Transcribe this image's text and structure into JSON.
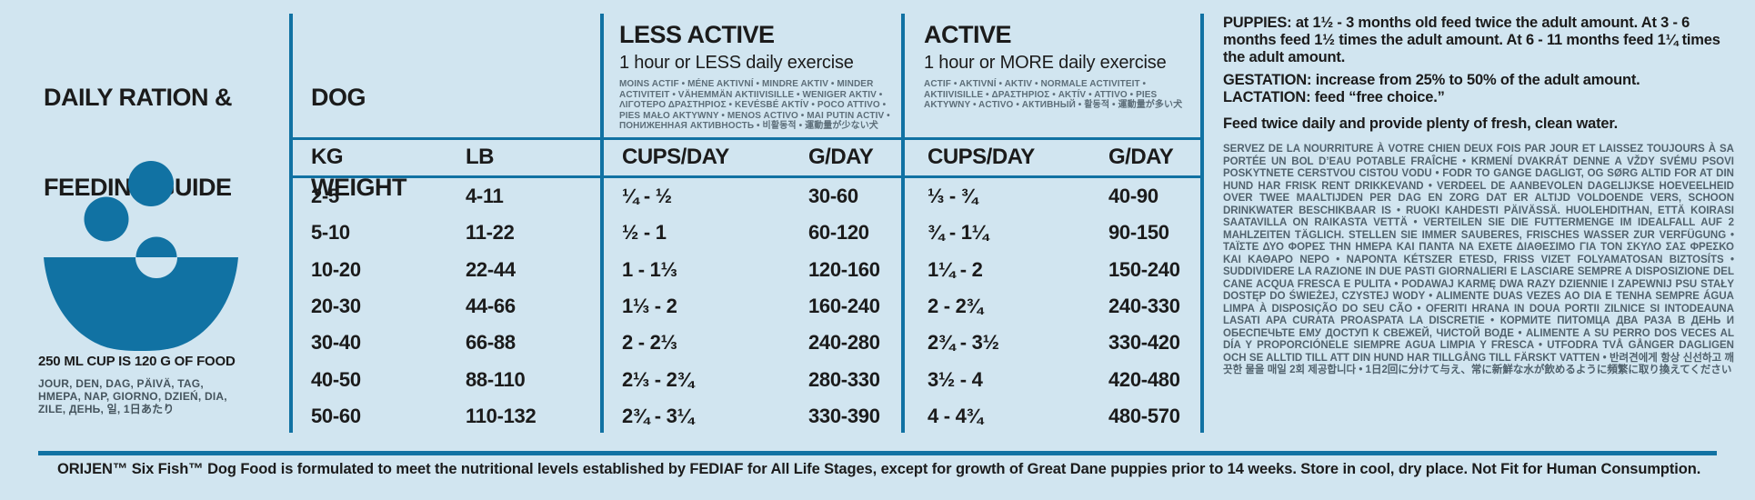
{
  "theme": {
    "background": "#d1e5f0",
    "accent_blue": "#1172a3",
    "text_black": "#1b1b1b",
    "text_gray": "#51626d"
  },
  "left_panel": {
    "title_line1": "DAILY RATION &",
    "title_line2": "FEEDING GUIDE",
    "bowl_icon": "bowl-with-kibble-icon",
    "cup_note": "250 ML CUP IS 120 G OF FOOD",
    "day_translations": [
      "JOUR, DEN, DAG, PÄIVÄ, TAG,",
      "HMEPA, NAP, GIORNO, DZIEŃ, DIA,",
      "ZILE, ДЕНЬ, 일, 1日あたり"
    ]
  },
  "table": {
    "weight_header_line1": "DOG",
    "weight_header_line2": "WEIGHT",
    "less_active": {
      "title": "LESS ACTIVE",
      "subtitle": "1 hour or LESS daily exercise",
      "translations": "MOINS ACTIF • MÉNE AKTIVNÍ • MINDRE AKTIV • MINDER ACTIVITEIT • VÄHEMMÄN AKTIIVISILLE • WENIGER AKTIV • ΛΙΓΟΤΕΡΟ ΔΡΑΣΤΗΡΙΟΣ • KEVÉSBÉ AKTÍV • POCO ATTIVO • PIES MAŁO AKTYWNY • MENOS ACTIVO • MAI PUTIN ACTIV • ПОНИЖЕННАЯ АКТИВНОСТЬ • 비활동적 • 運動量が少ない犬"
    },
    "active": {
      "title": "ACTIVE",
      "subtitle": "1 hour or MORE daily exercise",
      "translations": "ACTIF • AKTIVNÍ • AKTIV • NORMALE ACTIVITEIT • AKTIIVISILLE • ΔΡΑΣΤΗΡΙΟΣ • AKTÍV • ATTIVO • PIES AKTYWNY • ACTIVO • АКТИВНЫЙ • 활동적 • 運動量が多い犬"
    },
    "columns": {
      "kg": "KG",
      "lb": "LB",
      "less_cups": "CUPS/DAY",
      "less_g": "G/DAY",
      "active_cups": "CUPS/DAY",
      "active_g": "G/DAY"
    },
    "rows": [
      {
        "kg": "2-5",
        "lb": "4-11",
        "la_cups": "¼ - ½",
        "la_g": "30-60",
        "a_cups": "⅓ - ¾",
        "a_g": "40-90"
      },
      {
        "kg": "5-10",
        "lb": "11-22",
        "la_cups": "½ - 1",
        "la_g": "60-120",
        "a_cups": "¾ - 1¼",
        "a_g": "90-150"
      },
      {
        "kg": "10-20",
        "lb": "22-44",
        "la_cups": "1 - 1⅓",
        "la_g": "120-160",
        "a_cups": "1¼ - 2",
        "a_g": "150-240"
      },
      {
        "kg": "20-30",
        "lb": "44-66",
        "la_cups": "1⅓ - 2",
        "la_g": "160-240",
        "a_cups": "2 - 2¾",
        "a_g": "240-330"
      },
      {
        "kg": "30-40",
        "lb": "66-88",
        "la_cups": "2 - 2⅓",
        "la_g": "240-280",
        "a_cups": "2¾ - 3½",
        "a_g": "330-420"
      },
      {
        "kg": "40-50",
        "lb": "88-110",
        "la_cups": "2⅓ - 2¾",
        "la_g": "280-330",
        "a_cups": "3½ - 4",
        "a_g": "420-480"
      },
      {
        "kg": "50-60",
        "lb": "110-132",
        "la_cups": "2¾ - 3¼",
        "la_g": "330-390",
        "a_cups": "4 - 4¾",
        "a_g": "480-570"
      }
    ]
  },
  "right_panel": {
    "puppies_label": "PUPPIES",
    "puppies_text": ": at 1½ - 3 months old feed twice the adult amount. At 3 - 6 months feed 1½ times the adult amount. At 6 - 11 months feed 1¼ times the adult amount.",
    "gestation_label": "GESTATION",
    "gestation_text": ": increase from 25% to 50% of the adult amount.",
    "lactation_label": "LACTATION",
    "lactation_text": ": feed “free choice.”",
    "water_note": "Feed twice daily and provide plenty of fresh, clean water.",
    "translations_paragraph": "SERVEZ DE LA NOURRITURE À VOTRE CHIEN DEUX FOIS PAR JOUR ET LAISSEZ TOUJOURS À SA PORTÉE UN BOL D’EAU POTABLE FRAÎCHE • KRMENÍ DVAKRÁT DENNE A VŽDY SVÉMU PSOVI POSKYTNETE CERSTVOU CISTOU VODU • FODR TO GANGE DAGLIGT, OG SØRG ALTID FOR AT DIN HUND HAR FRISK RENT DRIKKEVAND • VERDEEL DE AANBEVOLEN DAGELIJKSE HOEVEELHEID OVER TWEE MAALTIJDEN PER DAG EN ZORG DAT ER ALTIJD VOLDOENDE VERS, SCHOON DRINKWATER BESCHIKBAAR IS • RUOKI KAHDESTI PÄIVÄSSÄ. HUOLEHDITHAN, ETTÄ KOIRASI SAATAVILLA ON RAIKASTA VETTÄ • VERTEILEN SIE DIE FUTTERMENGE IM IDEALFALL AUF 2 MAHLZEITEN TÄGLICH. STELLEN SIE IMMER SAUBERES, FRISCHES WASSER ZUR VERFÜGUNG • ΤΑΪΣΤΕ ΔΥΟ ΦΟΡΕΣ ΤΗΝ ΗΜΕΡΑ ΚΑΙ ΠΑΝΤΑ ΝΑ ΕΧΕΤΕ ΔΙΑΘΕΣΙΜΟ ΓΙΑ ΤΟΝ ΣΚΥΛΟ ΣΑΣ ΦΡΕΣΚΟ ΚΑΙ ΚΑΘΑΡΟ ΝΕΡΟ • NAPONTA KÉTSZER ETESD, FRISS VIZET FOLYAMATOSAN BIZTOSÍTS • SUDDIVIDERE LA RAZIONE IN DUE PASTI GIORNALIERI E LASCIARE SEMPRE A DISPOSIZIONE DEL CANE ACQUA FRESCA E PULITA • PODAWAJ KARMĘ DWA RAZY DZIENNIE I ZAPEWNIJ PSU STAŁY DOSTĘP DO ŚWIEŻEJ, CZYSTEJ WODY • ALIMENTE DUAS VEZES AO DIA E TENHA SEMPRE ÁGUA LIMPA À DISPOSIÇÃO DO SEU CÃO • OFERITI HRANA IN DOUA PORTII ZILNICE SI INTODEAUNA LASATI APA CURATA PROASPATA LA DISCRETIE • КОРМИТЕ ПИТОМЦА ДВА РАЗА В ДЕНЬ И ОБЕСПЕЧЬТЕ ЕМУ ДОСТУП К СВЕЖЕЙ, ЧИСТОЙ ВОДЕ • ALIMENTE A SU PERRO DOS VECES AL DÍA Y PROPORCIÓNELE SIEMPRE AGUA LIMPIA Y FRESCA • UTFODRA TVÅ GÅNGER DAGLIGEN OCH SE ALLTID TILL ATT DIN HUND HAR TILLGÅNG TILL FÄRSKT VATTEN • 반려견에게 항상 신선하고 깨끗한 물을 매일 2회 제공합니다 • 1日2回に分けて与え、常に新鮮な水が飲めるように頻繁に取り換えてください"
  },
  "footer": {
    "text": "ORIJEN™ Six Fish™ Dog Food is formulated to meet the nutritional levels established by FEDIAF for All Life Stages, except for growth of Great Dane puppies prior to 14 weeks. Store in cool, dry place. Not Fit for Human Consumption."
  }
}
